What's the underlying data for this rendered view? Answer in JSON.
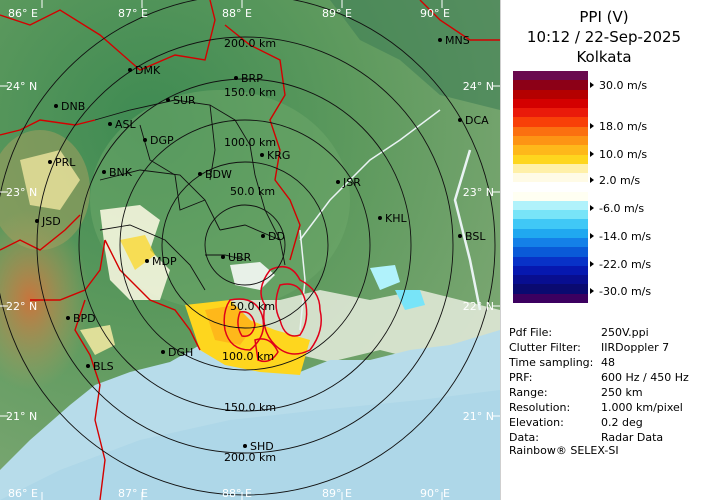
{
  "panel": {
    "title": "PPI (V)",
    "datetime": "10:12 / 22-Sep-2025",
    "station": "Kolkata",
    "legend": [
      {
        "label": "30.0 m/s"
      },
      {
        "label": "18.0 m/s"
      },
      {
        "label": "10.0 m/s"
      },
      {
        "label": "2.0 m/s"
      },
      {
        "label": "-6.0 m/s"
      },
      {
        "label": "-14.0 m/s"
      },
      {
        "label": "-22.0 m/s"
      },
      {
        "label": "-30.0 m/s"
      }
    ],
    "colors": [
      "#6a0a4e",
      "#8c0017",
      "#b40000",
      "#d40000",
      "#ea1a0a",
      "#f84008",
      "#fb7010",
      "#fd9414",
      "#feb81a",
      "#fed61e",
      "#fff0a8",
      "#fffbe6",
      "#ffffff",
      "#fffff2",
      "#b0f2fb",
      "#78e4f8",
      "#40c8f6",
      "#20a8f0",
      "#1480e8",
      "#0a5ad8",
      "#0832c8",
      "#0618b0",
      "#080e90",
      "#0a0a70",
      "#3c0060"
    ],
    "info": [
      {
        "key": "Pdf File:",
        "value": "250V.ppi"
      },
      {
        "key": "Clutter Filter:",
        "value": "IIRDoppler 7"
      },
      {
        "key": "Time sampling:",
        "value": "48"
      },
      {
        "key": "PRF:",
        "value": "600 Hz / 450 Hz"
      },
      {
        "key": "Range:",
        "value": "250 km"
      },
      {
        "key": "Resolution:",
        "value": "1.000 km/pixel"
      },
      {
        "key": "Elevation:",
        "value": "0.2 deg"
      },
      {
        "key": "Data:",
        "value": "Radar Data"
      }
    ],
    "credit": "Rainbow® SELEX-SI"
  },
  "map": {
    "lon_top": [
      "86° E",
      "87° E",
      "88° E",
      "89° E",
      "90° E"
    ],
    "lon_bottom": [
      "86° E",
      "87° E",
      "88° E",
      "89° E",
      "90° E"
    ],
    "lat_left": [
      "24° N",
      "23° N",
      "22° N",
      "21° N"
    ],
    "lat_right": [
      "24° N",
      "23° N",
      "22° N",
      "21° N"
    ],
    "ranges_upper": [
      "200.0 km",
      "150.0 km",
      "100.0 km",
      "50.0 km"
    ],
    "ranges_lower": [
      "50.0 km",
      "100.0 km",
      "150.0 km",
      "200.0 km"
    ],
    "cities": [
      {
        "name": "MNS"
      },
      {
        "name": "BRP"
      },
      {
        "name": "DMK"
      },
      {
        "name": "SUR"
      },
      {
        "name": "DNB"
      },
      {
        "name": "ASL"
      },
      {
        "name": "DGP"
      },
      {
        "name": "DCA"
      },
      {
        "name": "KRG"
      },
      {
        "name": "PRL"
      },
      {
        "name": "BNK"
      },
      {
        "name": "BDW"
      },
      {
        "name": "JSR"
      },
      {
        "name": "KHL"
      },
      {
        "name": "JSD"
      },
      {
        "name": "DD"
      },
      {
        "name": "BSL"
      },
      {
        "name": "UBR"
      },
      {
        "name": "MDP"
      },
      {
        "name": "BPD"
      },
      {
        "name": "DGH"
      },
      {
        "name": "BLS"
      },
      {
        "name": "SHD"
      }
    ]
  }
}
